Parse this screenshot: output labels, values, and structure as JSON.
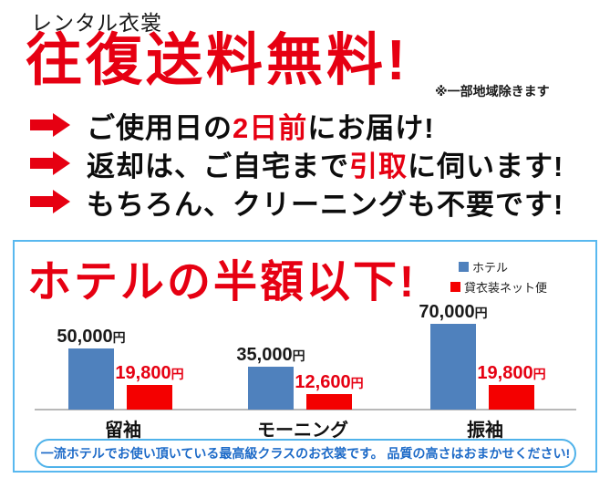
{
  "colors": {
    "accent_red": "#e60012",
    "bar_blue": "#4f81bd",
    "bar_red": "#f40000",
    "box_border_blue": "#58b8ef",
    "pill_border_blue": "#4fb2ea",
    "pill_text_blue": "#1e6bc8",
    "axis_gray": "#b8b8b8"
  },
  "header": {
    "brand": "レンタル衣裳",
    "headline": "往復送料無料!",
    "note": "※一部地域除きます"
  },
  "benefits": [
    {
      "pre": "ご使用日の",
      "highlight": "2日前",
      "post": "にお届け!"
    },
    {
      "pre": "返却は、ご自宅まで",
      "highlight": "引取",
      "post": "に伺います!"
    },
    {
      "pre": "もちろん、クリーニングも不要です!",
      "highlight": "",
      "post": ""
    }
  ],
  "chart": {
    "title": "ホテルの半額以下!",
    "legend": [
      {
        "label": "ホテル",
        "color": "#4f81bd"
      },
      {
        "label": "貸衣装ネット便",
        "color": "#f40000"
      }
    ],
    "footer_note": "一流ホテルでお使い頂いている最高級クラスのお衣裳です。 品質の高さはおまかせください!"
  },
  "chart_data": {
    "type": "bar",
    "title": "ホテルの半額以下!",
    "categories": [
      "留袖",
      "モーニング",
      "振袖"
    ],
    "series": [
      {
        "name": "ホテル",
        "color": "#4f81bd",
        "values": [
          50000,
          35000,
          70000
        ]
      },
      {
        "name": "貸衣装ネット便",
        "color": "#f40000",
        "values": [
          19800,
          12600,
          19800
        ]
      }
    ],
    "values_display": [
      [
        "50,000",
        "19,800"
      ],
      [
        "35,000",
        "12,600"
      ],
      [
        "70,000",
        "19,800"
      ]
    ],
    "unit": "円",
    "ylim": [
      0,
      70000
    ],
    "grid": false,
    "value_labels": true,
    "legend_position": "top-right"
  }
}
